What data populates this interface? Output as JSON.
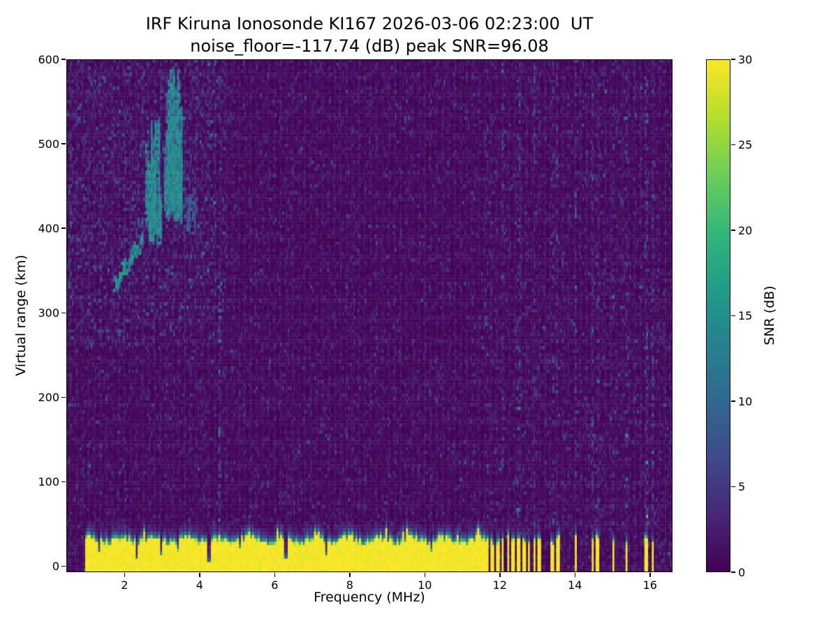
{
  "figure": {
    "title_line1": "IRF Kiruna Ionosonde KI167 2026-03-06 02:23:00  UT",
    "title_line2": "noise_floor=-117.74 (dB) peak SNR=96.08"
  },
  "chart_data": {
    "type": "heatmap",
    "title": "IRF Kiruna Ionosonde KI167 2026-03-06 02:23:00  UT",
    "subtitle": "noise_floor=-117.74 (dB) peak SNR=96.08",
    "station": "IRF Kiruna",
    "instrument": "Ionosonde KI167",
    "timestamp_ut": "2026-03-06 02:23:00 UT",
    "noise_floor_db": -117.74,
    "peak_snr_db": 96.08,
    "xlabel": "Frequency (MHz)",
    "ylabel": "Virtual range (km)",
    "colorbar_label": "SNR (dB)",
    "colormap": "viridis",
    "xlim": [
      0.45,
      16.6
    ],
    "ylim": [
      -7,
      600
    ],
    "clim": [
      0,
      30
    ],
    "x_ticks": [
      2,
      4,
      6,
      8,
      10,
      12,
      14,
      16
    ],
    "y_ticks": [
      0,
      100,
      200,
      300,
      400,
      500,
      600
    ],
    "colorbar_ticks": [
      0,
      5,
      10,
      15,
      20,
      25,
      30
    ],
    "cell_size": {
      "df_mhz": 0.05,
      "dr_km": 4
    },
    "seed": 20260306,
    "background_noise": {
      "mean_db": 1.1,
      "spread_f_region": {
        "f_max": 4.7,
        "r_min": 260,
        "mean_db": 1.8
      },
      "hf_region_boost": 1.1
    },
    "ground_clutter_band": {
      "f_start": 0.95,
      "f_end": 11.62,
      "r_bottom": -7,
      "top_mean_km": 28,
      "top_jitter_km": 8,
      "snr_db": 30,
      "notches": [
        [
          1.32,
          0.06,
          0.5
        ],
        [
          2.34,
          0.07,
          0.85
        ],
        [
          2.98,
          0.07,
          0.6
        ],
        [
          3.42,
          0.05,
          0.4
        ],
        [
          4.24,
          0.09,
          0.9
        ],
        [
          5.08,
          0.05,
          0.35
        ],
        [
          6.3,
          0.08,
          0.8
        ],
        [
          7.38,
          0.07,
          0.65
        ],
        [
          8.1,
          0.04,
          0.3
        ],
        [
          9.02,
          0.05,
          0.4
        ],
        [
          9.6,
          0.04,
          0.3
        ],
        [
          10.2,
          0.05,
          0.35
        ],
        [
          10.9,
          0.04,
          0.3
        ]
      ],
      "hf_bars": [
        [
          11.62,
          11.7
        ],
        [
          11.76,
          11.84
        ],
        [
          11.9,
          11.98
        ],
        [
          12.04,
          12.12
        ],
        [
          12.18,
          12.26
        ],
        [
          12.32,
          12.4
        ],
        [
          12.46,
          12.54
        ],
        [
          12.6,
          12.68
        ],
        [
          12.74,
          12.82
        ],
        [
          12.88,
          12.96
        ],
        [
          13.02,
          13.1
        ],
        [
          13.37,
          13.45
        ],
        [
          13.5,
          13.58
        ],
        [
          13.98,
          14.06
        ],
        [
          14.43,
          14.51
        ],
        [
          14.56,
          14.64
        ],
        [
          14.99,
          15.07
        ],
        [
          15.33,
          15.41
        ],
        [
          15.86,
          15.94
        ],
        [
          16.03,
          16.11
        ]
      ]
    },
    "interference_columns": [
      {
        "f": 4.52,
        "hw": 0.035,
        "boost": 3.0,
        "r0": 45,
        "r1": 330
      },
      {
        "f": 4.52,
        "hw": 0.035,
        "boost": 1.8,
        "r0": 95,
        "r1": 175
      },
      {
        "f": 11.66,
        "hw": 0.035,
        "boost": 1.9,
        "r0": -7,
        "r1": 600
      },
      {
        "f": 12.08,
        "hw": 0.035,
        "boost": 1.9,
        "r0": -7,
        "r1": 600
      },
      {
        "f": 12.5,
        "hw": 0.035,
        "boost": 1.9,
        "r0": -7,
        "r1": 600
      },
      {
        "f": 12.92,
        "hw": 0.035,
        "boost": 1.9,
        "r0": -7,
        "r1": 600
      },
      {
        "f": 13.41,
        "hw": 0.035,
        "boost": 2.1,
        "r0": -7,
        "r1": 600
      },
      {
        "f": 13.54,
        "hw": 0.035,
        "boost": 1.8,
        "r0": -7,
        "r1": 600
      },
      {
        "f": 14.02,
        "hw": 0.035,
        "boost": 2.1,
        "r0": -7,
        "r1": 600
      },
      {
        "f": 14.47,
        "hw": 0.035,
        "boost": 2.0,
        "r0": -7,
        "r1": 600
      },
      {
        "f": 14.6,
        "hw": 0.035,
        "boost": 1.8,
        "r0": -7,
        "r1": 600
      },
      {
        "f": 15.03,
        "hw": 0.035,
        "boost": 2.1,
        "r0": -7,
        "r1": 600
      },
      {
        "f": 15.37,
        "hw": 0.035,
        "boost": 2.0,
        "r0": -7,
        "r1": 600
      },
      {
        "f": 15.9,
        "hw": 0.035,
        "boost": 2.1,
        "r0": -7,
        "r1": 600
      },
      {
        "f": 16.07,
        "hw": 0.035,
        "boost": 1.9,
        "r0": -7,
        "r1": 600
      }
    ],
    "echo_traces": {
      "slant": {
        "f0": 1.74,
        "r0": 332,
        "f1": 2.5,
        "r1": 388,
        "spread_km": 9,
        "snr_db": 13
      },
      "spread_clusters": [
        {
          "f0": 2.56,
          "f1": 2.98,
          "r_base": 386,
          "r_top": 532,
          "strokes": 55,
          "snr_db": 13
        },
        {
          "f0": 3.08,
          "f1": 3.55,
          "r_base": 412,
          "r_top": 592,
          "strokes": 60,
          "snr_db": 13
        },
        {
          "f0": 3.6,
          "f1": 3.92,
          "r_base": 400,
          "r_top": 448,
          "strokes": 16,
          "snr_db": 8
        }
      ]
    }
  }
}
